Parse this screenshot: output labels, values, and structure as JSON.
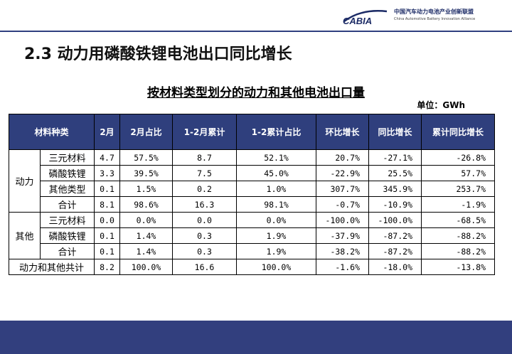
{
  "logo": {
    "mark": "CABIA",
    "name_cn": "中国汽车动力电池产业创新联盟",
    "name_en": "China Automotive Battery Innovation Alliance"
  },
  "slide_title": "2.3 动力用磷酸铁锂电池出口同比增长",
  "table_title": "按材料类型划分的动力和其他电池出口量",
  "unit": "单位：GWh",
  "columns": [
    "材料种类",
    "2月",
    "2月占比",
    "1-2月累计",
    "1-2累计占比",
    "环比增长",
    "同比增长",
    "累计同比增长"
  ],
  "groups": [
    {
      "name": "动力",
      "rows": [
        {
          "type": "三元材料",
          "feb": "4.7",
          "feb_share": "57.5%",
          "cum": "8.7",
          "cum_share": "52.1%",
          "mom": "20.7%",
          "yoy": "-27.1%",
          "cum_yoy": "-26.8%"
        },
        {
          "type": "磷酸铁锂",
          "feb": "3.3",
          "feb_share": "39.5%",
          "cum": "7.5",
          "cum_share": "45.0%",
          "mom": "-22.9%",
          "yoy": "25.5%",
          "cum_yoy": "57.7%"
        },
        {
          "type": "其他类型",
          "feb": "0.1",
          "feb_share": "1.5%",
          "cum": "0.2",
          "cum_share": "1.0%",
          "mom": "307.7%",
          "yoy": "345.9%",
          "cum_yoy": "253.7%"
        },
        {
          "type": "合计",
          "feb": "8.1",
          "feb_share": "98.6%",
          "cum": "16.3",
          "cum_share": "98.1%",
          "mom": "-0.7%",
          "yoy": "-10.9%",
          "cum_yoy": "-1.9%"
        }
      ]
    },
    {
      "name": "其他",
      "rows": [
        {
          "type": "三元材料",
          "feb": "0.0",
          "feb_share": "0.0%",
          "cum": "0.0",
          "cum_share": "0.0%",
          "mom": "-100.0%",
          "yoy": "-100.0%",
          "cum_yoy": "-68.5%"
        },
        {
          "type": "磷酸铁锂",
          "feb": "0.1",
          "feb_share": "1.4%",
          "cum": "0.3",
          "cum_share": "1.9%",
          "mom": "-37.9%",
          "yoy": "-87.2%",
          "cum_yoy": "-88.2%"
        },
        {
          "type": "合计",
          "feb": "0.1",
          "feb_share": "1.4%",
          "cum": "0.3",
          "cum_share": "1.9%",
          "mom": "-38.2%",
          "yoy": "-87.2%",
          "cum_yoy": "-88.2%"
        }
      ]
    }
  ],
  "total": {
    "label": "动力和其他共计",
    "feb": "8.2",
    "feb_share": "100.0%",
    "cum": "16.6",
    "cum_share": "100.0%",
    "mom": "-1.6%",
    "yoy": "-18.0%",
    "cum_yoy": "-13.8%"
  },
  "colors": {
    "header_bg": "#2f3f7d",
    "footer_bg": "#323f7e",
    "accent": "#1c2b66"
  }
}
